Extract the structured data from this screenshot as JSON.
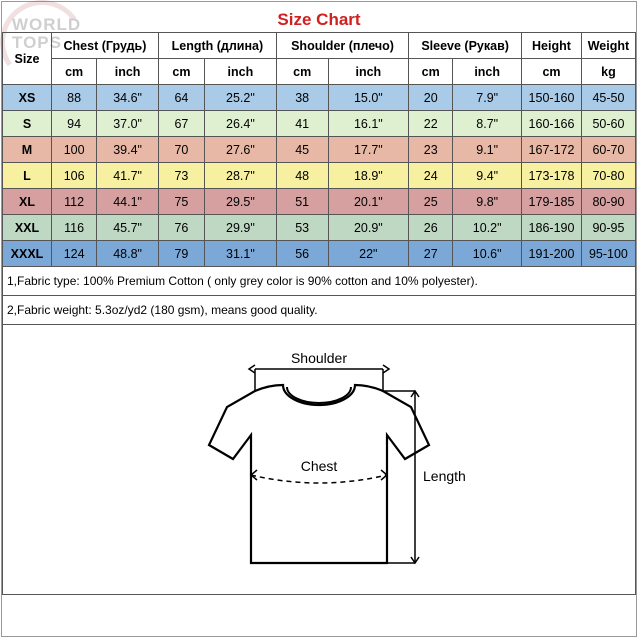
{
  "watermark": {
    "line1": "WORLD",
    "line2": "TOPS"
  },
  "title": "Size Chart",
  "columns": [
    {
      "label": "Size",
      "subs": []
    },
    {
      "label": "Chest (Грудь)",
      "subs": [
        "cm",
        "inch"
      ]
    },
    {
      "label": "Length (длина)",
      "subs": [
        "cm",
        "inch"
      ]
    },
    {
      "label": "Shoulder (плечо)",
      "subs": [
        "cm",
        "inch"
      ]
    },
    {
      "label": "Sleeve (Рукав)",
      "subs": [
        "cm",
        "inch"
      ]
    },
    {
      "label": "Height",
      "subs": [
        "cm"
      ]
    },
    {
      "label": "Weight",
      "subs": [
        "kg"
      ]
    }
  ],
  "rows": [
    {
      "bg": "#a9cbe8",
      "cells": [
        "XS",
        "88",
        "34.6\"",
        "64",
        "25.2\"",
        "38",
        "15.0\"",
        "20",
        "7.9\"",
        "150-160",
        "45-50"
      ]
    },
    {
      "bg": "#dff0d1",
      "cells": [
        "S",
        "94",
        "37.0\"",
        "67",
        "26.4\"",
        "41",
        "16.1\"",
        "22",
        "8.7\"",
        "160-166",
        "50-60"
      ]
    },
    {
      "bg": "#e8b8a6",
      "cells": [
        "M",
        "100",
        "39.4\"",
        "70",
        "27.6\"",
        "45",
        "17.7\"",
        "23",
        "9.1\"",
        "167-172",
        "60-70"
      ]
    },
    {
      "bg": "#f6f0a0",
      "cells": [
        "L",
        "106",
        "41.7\"",
        "73",
        "28.7\"",
        "48",
        "18.9\"",
        "24",
        "9.4\"",
        "173-178",
        "70-80"
      ]
    },
    {
      "bg": "#d6a0a0",
      "cells": [
        "XL",
        "112",
        "44.1\"",
        "75",
        "29.5\"",
        "51",
        "20.1\"",
        "25",
        "9.8\"",
        "179-185",
        "80-90"
      ]
    },
    {
      "bg": "#bfd8c3",
      "cells": [
        "XXL",
        "116",
        "45.7\"",
        "76",
        "29.9\"",
        "53",
        "20.9\"",
        "26",
        "10.2\"",
        "186-190",
        "90-95"
      ]
    },
    {
      "bg": "#7ba8d6",
      "cells": [
        "XXXL",
        "124",
        "48.8\"",
        "79",
        "31.1\"",
        "56",
        "22\"",
        "27",
        "10.6\"",
        "191-200",
        "95-100"
      ]
    }
  ],
  "notes": [
    "1,Fabric type: 100% Premium Cotton ( only grey color is 90% cotton and 10% polyester).",
    "2,Fabric weight: 5.3oz/yd2 (180 gsm), means good quality."
  ],
  "diagram": {
    "labels": {
      "shoulder": "Shoulder",
      "chest": "Chest",
      "length": "Length"
    },
    "stroke": "#000000",
    "fill": "#ffffff"
  }
}
